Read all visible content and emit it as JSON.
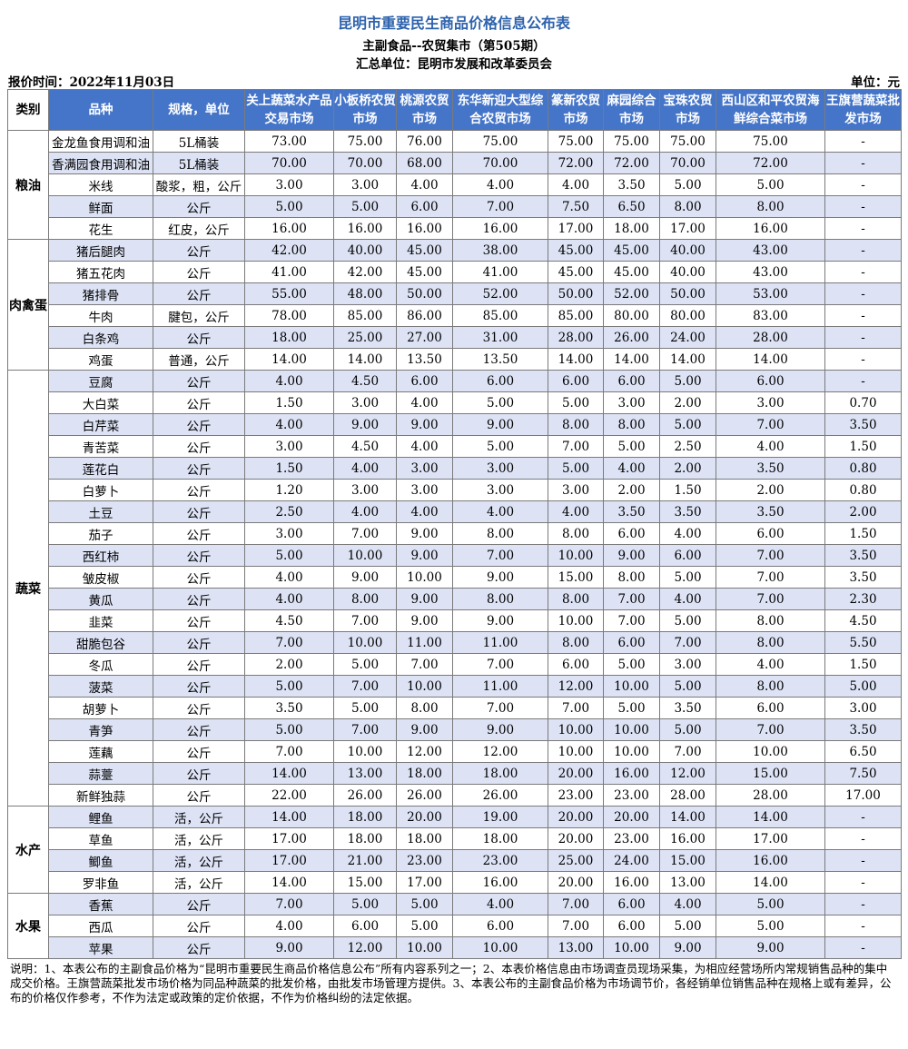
{
  "header": {
    "title": "昆明市重要民生商品价格信息公布表",
    "subtitle": "主副食品--农贸集市（第505期）",
    "publisher_line": "汇总单位：昆明市发展和改革委员会",
    "price_time": "报价时间：2022年11月03日",
    "unit": "单位：元"
  },
  "columns": [
    "类别",
    "品种",
    "规格，单位",
    "关上蔬菜水产品交易市场",
    "小板桥农贸市场",
    "桃源农贸市场",
    "东华新迎大型综合农贸市场",
    "篆新农贸市场",
    "麻园综合市场",
    "宝珠农贸市场",
    "西山区和平农贸海鲜综合菜市场",
    "王旗营蔬菜批发市场"
  ],
  "groups": [
    {
      "category": "粮油",
      "rows": [
        {
          "name": "金龙鱼食用调和油",
          "spec": "5L桶装",
          "prices": [
            "73.00",
            "75.00",
            "76.00",
            "75.00",
            "75.00",
            "75.00",
            "75.00",
            "75.00",
            "-"
          ]
        },
        {
          "name": "香满园食用调和油",
          "spec": "5L桶装",
          "prices": [
            "70.00",
            "70.00",
            "68.00",
            "70.00",
            "72.00",
            "72.00",
            "70.00",
            "72.00",
            "-"
          ]
        },
        {
          "name": "米线",
          "spec": "酸浆，粗，公斤",
          "prices": [
            "3.00",
            "3.00",
            "4.00",
            "4.00",
            "4.00",
            "3.50",
            "5.00",
            "5.00",
            "-"
          ]
        },
        {
          "name": "鲜面",
          "spec": "公斤",
          "prices": [
            "5.00",
            "5.00",
            "6.00",
            "7.00",
            "7.50",
            "6.50",
            "8.00",
            "8.00",
            "-"
          ]
        },
        {
          "name": "花生",
          "spec": "红皮，公斤",
          "prices": [
            "16.00",
            "16.00",
            "16.00",
            "16.00",
            "17.00",
            "18.00",
            "17.00",
            "16.00",
            "-"
          ]
        }
      ]
    },
    {
      "category": "肉禽蛋",
      "rows": [
        {
          "name": "猪后腿肉",
          "spec": "公斤",
          "prices": [
            "42.00",
            "40.00",
            "45.00",
            "38.00",
            "45.00",
            "45.00",
            "40.00",
            "43.00",
            "-"
          ]
        },
        {
          "name": "猪五花肉",
          "spec": "公斤",
          "prices": [
            "41.00",
            "42.00",
            "45.00",
            "41.00",
            "45.00",
            "45.00",
            "40.00",
            "43.00",
            "-"
          ]
        },
        {
          "name": "猪排骨",
          "spec": "公斤",
          "prices": [
            "55.00",
            "48.00",
            "50.00",
            "52.00",
            "50.00",
            "52.00",
            "50.00",
            "53.00",
            "-"
          ]
        },
        {
          "name": "牛肉",
          "spec": "腱包，公斤",
          "prices": [
            "78.00",
            "85.00",
            "86.00",
            "85.00",
            "85.00",
            "80.00",
            "80.00",
            "83.00",
            "-"
          ]
        },
        {
          "name": "白条鸡",
          "spec": "公斤",
          "prices": [
            "18.00",
            "25.00",
            "27.00",
            "31.00",
            "28.00",
            "26.00",
            "24.00",
            "28.00",
            "-"
          ]
        },
        {
          "name": "鸡蛋",
          "spec": "普通，公斤",
          "prices": [
            "14.00",
            "14.00",
            "13.50",
            "13.50",
            "14.00",
            "14.00",
            "14.00",
            "14.00",
            "-"
          ]
        }
      ]
    },
    {
      "category": "蔬菜",
      "rows": [
        {
          "name": "豆腐",
          "spec": "公斤",
          "prices": [
            "4.00",
            "4.50",
            "6.00",
            "6.00",
            "6.00",
            "6.00",
            "5.00",
            "6.00",
            "-"
          ]
        },
        {
          "name": "大白菜",
          "spec": "公斤",
          "prices": [
            "1.50",
            "3.00",
            "4.00",
            "5.00",
            "5.00",
            "3.00",
            "2.00",
            "3.00",
            "0.70"
          ]
        },
        {
          "name": "白芹菜",
          "spec": "公斤",
          "prices": [
            "4.00",
            "9.00",
            "9.00",
            "9.00",
            "8.00",
            "8.00",
            "5.00",
            "7.00",
            "3.50"
          ]
        },
        {
          "name": "青苦菜",
          "spec": "公斤",
          "prices": [
            "3.00",
            "4.50",
            "4.00",
            "5.00",
            "7.00",
            "5.00",
            "2.50",
            "4.00",
            "1.50"
          ]
        },
        {
          "name": "莲花白",
          "spec": "公斤",
          "prices": [
            "1.50",
            "4.00",
            "3.00",
            "3.00",
            "5.00",
            "4.00",
            "2.00",
            "3.50",
            "0.80"
          ]
        },
        {
          "name": "白萝卜",
          "spec": "公斤",
          "prices": [
            "1.20",
            "3.00",
            "3.00",
            "3.00",
            "3.00",
            "2.00",
            "1.50",
            "2.00",
            "0.80"
          ]
        },
        {
          "name": "土豆",
          "spec": "公斤",
          "prices": [
            "2.50",
            "4.00",
            "4.00",
            "4.00",
            "4.00",
            "3.50",
            "3.50",
            "3.50",
            "2.00"
          ]
        },
        {
          "name": "茄子",
          "spec": "公斤",
          "prices": [
            "3.00",
            "7.00",
            "9.00",
            "8.00",
            "8.00",
            "6.00",
            "4.00",
            "6.00",
            "1.50"
          ]
        },
        {
          "name": "西红柿",
          "spec": "公斤",
          "prices": [
            "5.00",
            "10.00",
            "9.00",
            "7.00",
            "10.00",
            "9.00",
            "6.00",
            "7.00",
            "3.50"
          ]
        },
        {
          "name": "皱皮椒",
          "spec": "公斤",
          "prices": [
            "4.00",
            "9.00",
            "10.00",
            "9.00",
            "15.00",
            "8.00",
            "5.00",
            "7.00",
            "3.50"
          ]
        },
        {
          "name": "黄瓜",
          "spec": "公斤",
          "prices": [
            "4.00",
            "8.00",
            "9.00",
            "8.00",
            "8.00",
            "7.00",
            "4.00",
            "7.00",
            "2.30"
          ]
        },
        {
          "name": "韭菜",
          "spec": "公斤",
          "prices": [
            "4.50",
            "7.00",
            "9.00",
            "9.00",
            "10.00",
            "7.00",
            "5.00",
            "8.00",
            "4.50"
          ]
        },
        {
          "name": "甜脆包谷",
          "spec": "公斤",
          "prices": [
            "7.00",
            "10.00",
            "11.00",
            "11.00",
            "8.00",
            "6.00",
            "7.00",
            "8.00",
            "5.50"
          ]
        },
        {
          "name": "冬瓜",
          "spec": "公斤",
          "prices": [
            "2.00",
            "5.00",
            "7.00",
            "7.00",
            "6.00",
            "5.00",
            "3.00",
            "4.00",
            "1.50"
          ]
        },
        {
          "name": "菠菜",
          "spec": "公斤",
          "prices": [
            "5.00",
            "7.00",
            "10.00",
            "11.00",
            "12.00",
            "10.00",
            "5.00",
            "8.00",
            "5.00"
          ]
        },
        {
          "name": "胡萝卜",
          "spec": "公斤",
          "prices": [
            "3.50",
            "5.00",
            "8.00",
            "7.00",
            "7.00",
            "5.00",
            "3.50",
            "6.00",
            "3.00"
          ]
        },
        {
          "name": "青笋",
          "spec": "公斤",
          "prices": [
            "5.00",
            "7.00",
            "9.00",
            "9.00",
            "10.00",
            "10.00",
            "5.00",
            "7.00",
            "3.50"
          ]
        },
        {
          "name": "莲藕",
          "spec": "公斤",
          "prices": [
            "7.00",
            "10.00",
            "12.00",
            "12.00",
            "10.00",
            "10.00",
            "7.00",
            "10.00",
            "6.50"
          ]
        },
        {
          "name": "蒜薹",
          "spec": "公斤",
          "prices": [
            "14.00",
            "13.00",
            "18.00",
            "18.00",
            "20.00",
            "16.00",
            "12.00",
            "15.00",
            "7.50"
          ]
        },
        {
          "name": "新鲜独蒜",
          "spec": "公斤",
          "prices": [
            "22.00",
            "26.00",
            "26.00",
            "26.00",
            "23.00",
            "23.00",
            "28.00",
            "28.00",
            "17.00"
          ]
        }
      ]
    },
    {
      "category": "水产",
      "rows": [
        {
          "name": "鲤鱼",
          "spec": "活，公斤",
          "prices": [
            "14.00",
            "18.00",
            "20.00",
            "19.00",
            "20.00",
            "20.00",
            "14.00",
            "14.00",
            "-"
          ]
        },
        {
          "name": "草鱼",
          "spec": "活，公斤",
          "prices": [
            "17.00",
            "18.00",
            "18.00",
            "18.00",
            "20.00",
            "23.00",
            "16.00",
            "17.00",
            "-"
          ]
        },
        {
          "name": "鲫鱼",
          "spec": "活，公斤",
          "prices": [
            "17.00",
            "21.00",
            "23.00",
            "23.00",
            "25.00",
            "24.00",
            "15.00",
            "16.00",
            "-"
          ]
        },
        {
          "name": "罗非鱼",
          "spec": "活，公斤",
          "prices": [
            "14.00",
            "15.00",
            "17.00",
            "16.00",
            "20.00",
            "16.00",
            "13.00",
            "14.00",
            "-"
          ]
        }
      ]
    },
    {
      "category": "水果",
      "rows": [
        {
          "name": "香蕉",
          "spec": "公斤",
          "prices": [
            "7.00",
            "5.00",
            "5.00",
            "4.00",
            "7.00",
            "6.00",
            "4.00",
            "5.00",
            "-"
          ]
        },
        {
          "name": "西瓜",
          "spec": "公斤",
          "prices": [
            "4.00",
            "6.00",
            "5.00",
            "6.00",
            "7.00",
            "6.00",
            "5.00",
            "5.00",
            "-"
          ]
        },
        {
          "name": "苹果",
          "spec": "公斤",
          "prices": [
            "9.00",
            "12.00",
            "10.00",
            "10.00",
            "13.00",
            "10.00",
            "9.00",
            "9.00",
            "-"
          ]
        }
      ]
    }
  ],
  "note": "说明：1、本表公布的主副食品价格为“昆明市重要民生商品价格信息公布”所有内容系列之一；2、本表价格信息由市场调查员现场采集，为相应经营场所内常规销售品种的集中成交价格。王旗营蔬菜批发市场价格为同品种蔬菜的批发价格，由批发市场管理方提供。3、本表公布的主副食品价格为市场调节价，各经销单位销售品种在规格上或有差异，公布的价格仅作参考，不作为法定或政策的定价依据，不作为价格纠纷的法定依据。"
}
